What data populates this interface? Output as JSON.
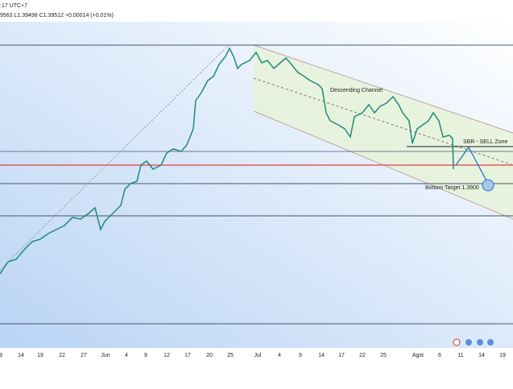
{
  "header": {
    "ohlc": "9563 L1.39498 C1.39512 +0.00014 (+0.01%)",
    "time": ":17 UTC+7"
  },
  "annotations": {
    "channel": "Descending Channel",
    "zone": "SBR - SELL Zone",
    "target": "Bottom Target 1.3900"
  },
  "x_axis": [
    "9",
    "14",
    "19",
    "22",
    "27",
    "Jun",
    "4",
    "9",
    "12",
    "17",
    "20",
    "25",
    "Jul",
    "4",
    "9",
    "14",
    "17",
    "22",
    "25",
    "Agst",
    "6",
    "11",
    "14",
    "19"
  ]
}
